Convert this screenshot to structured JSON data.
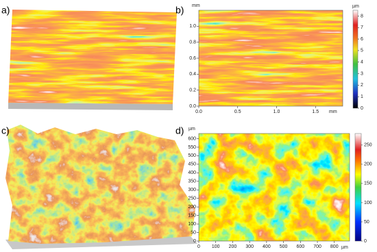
{
  "panels": [
    {
      "label": "a)"
    },
    {
      "label": "b)",
      "x_unit": "mm",
      "y_unit": "mm",
      "xlim": [
        0,
        1.85
      ],
      "ylim": [
        0,
        1.2
      ],
      "xticks": [
        {
          "value": 0,
          "label": "0.0"
        },
        {
          "value": 0.5,
          "label": "0.5"
        },
        {
          "value": 1,
          "label": "1.0"
        },
        {
          "value": 1.5,
          "label": "1.5"
        }
      ],
      "yticks": [
        {
          "value": 0,
          "label": "0.0"
        },
        0.2,
        0.4,
        0.6,
        0.8,
        {
          "value": 1,
          "label": "1.0"
        }
      ],
      "colorbar": {
        "unit": "µm",
        "lim": [
          0,
          8.5
        ],
        "ticks": [
          0,
          1,
          2,
          3,
          4,
          5,
          6,
          7,
          8
        ]
      }
    },
    {
      "label": "c)"
    },
    {
      "label": "d)",
      "x_unit": "µm",
      "y_unit": "µm",
      "xlim": [
        0,
        890
      ],
      "ylim": [
        0,
        630
      ],
      "xticks": [
        0,
        100,
        200,
        300,
        400,
        500,
        600,
        700,
        800
      ],
      "yticks": [
        0,
        50,
        100,
        150,
        200,
        250,
        300,
        350,
        400,
        450,
        500,
        550,
        600
      ],
      "colorbar": {
        "lim": [
          0,
          280
        ],
        "ticks": [
          0,
          50,
          100,
          150,
          200,
          250
        ]
      }
    }
  ]
}
